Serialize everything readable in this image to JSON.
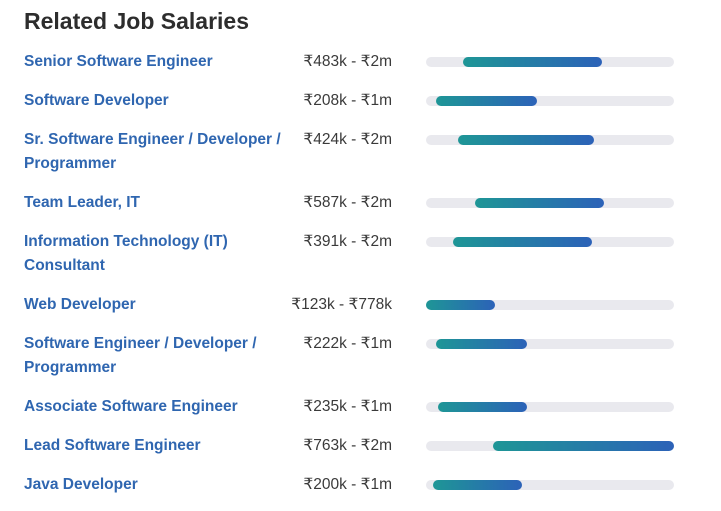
{
  "title": "Related Job Salaries",
  "colors": {
    "link": "#2f66b0",
    "bar_start": "#1e9696",
    "bar_end": "#2c62b8",
    "track": "#e9e9ee"
  },
  "jobs": [
    {
      "title": "Senior Software Engineer",
      "range": "₹483k - ₹2m",
      "bar_start": 0.149,
      "bar_end": 0.71
    },
    {
      "title": "Software Developer",
      "range": "₹208k - ₹1m",
      "bar_start": 0.04,
      "bar_end": 0.448
    },
    {
      "title": "Sr. Software Engineer / Developer / Programmer",
      "range": "₹424k - ₹2m",
      "bar_start": 0.129,
      "bar_end": 0.677
    },
    {
      "title": "Team Leader, IT",
      "range": "₹587k - ₹2m",
      "bar_start": 0.198,
      "bar_end": 0.718
    },
    {
      "title": "Information Technology (IT) Consultant",
      "range": "₹391k - ₹2m",
      "bar_start": 0.109,
      "bar_end": 0.669
    },
    {
      "title": "Web Developer",
      "range": "₹123k - ₹778k",
      "bar_start": 0.0,
      "bar_end": 0.278
    },
    {
      "title": "Software Engineer / Developer / Programmer",
      "range": "₹222k - ₹1m",
      "bar_start": 0.04,
      "bar_end": 0.407
    },
    {
      "title": "Associate Software Engineer",
      "range": "₹235k - ₹1m",
      "bar_start": 0.048,
      "bar_end": 0.407
    },
    {
      "title": "Lead Software Engineer",
      "range": "₹763k - ₹2m",
      "bar_start": 0.27,
      "bar_end": 1.0
    },
    {
      "title": "Java Developer",
      "range": "₹200k - ₹1m",
      "bar_start": 0.028,
      "bar_end": 0.387
    }
  ]
}
